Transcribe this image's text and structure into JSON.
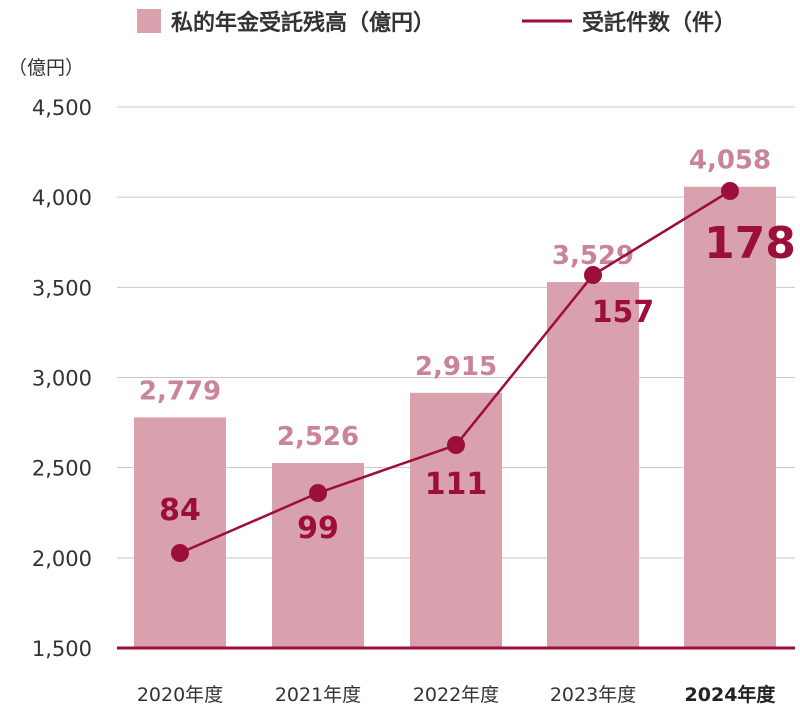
{
  "chart_data": {
    "type": "bar",
    "categories": [
      "2020年度",
      "2021年度",
      "2022年度",
      "2023年度",
      "2024年度"
    ],
    "highlight_category": "2024年度",
    "unit_label": "（億円）",
    "ylim": [
      1500,
      4500
    ],
    "yticks": [
      1500,
      2000,
      2500,
      3000,
      3500,
      4000,
      4500
    ],
    "ytick_labels": [
      "1,500",
      "2,000",
      "2,500",
      "3,000",
      "3,500",
      "4,000",
      "4,500"
    ],
    "grid": true,
    "legend_position": "top",
    "series": [
      {
        "name": "私的年金受託残高（億円）",
        "type": "bar",
        "values": [
          2779,
          2526,
          2915,
          3529,
          4058
        ],
        "labels": [
          "2,779",
          "2,526",
          "2,915",
          "3,529",
          "4,058"
        ],
        "color": "#d9a0ae",
        "label_color": "#c98596"
      },
      {
        "name": "受託件数（件）",
        "type": "line",
        "values": [
          84,
          99,
          111,
          157,
          178
        ],
        "labels": [
          "84",
          "99",
          "111",
          "157",
          "178"
        ],
        "color": "#9b0f3a"
      }
    ]
  }
}
